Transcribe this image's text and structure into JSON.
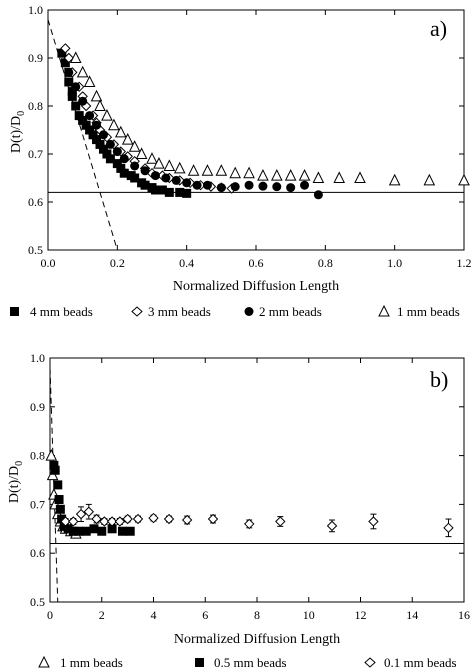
{
  "chart_data": [
    {
      "type": "scatter",
      "panel_label": "a)",
      "xlabel": "Normalized Diffusion Length",
      "ylabel": "D(t)/D",
      "ylabel_sub": "0",
      "xlim": [
        0,
        1.2
      ],
      "ylim": [
        0.5,
        1.0
      ],
      "xticks": [
        "0.0",
        "0.2",
        "0.4",
        "0.6",
        "0.8",
        "1.0",
        "1.2"
      ],
      "yticks": [
        "0.5",
        "0.6",
        "0.7",
        "0.8",
        "0.9",
        "1.0"
      ],
      "grid": false,
      "legend_position": "below",
      "reference_line": {
        "y": 0.62
      },
      "tangent_line": {
        "x1": 0.0,
        "y1": 0.98,
        "x2": 0.2,
        "y2": 0.5
      },
      "series": [
        {
          "name": "4 mm beads",
          "marker": "square-filled",
          "points": [
            [
              0.04,
              0.91
            ],
            [
              0.05,
              0.89
            ],
            [
              0.06,
              0.87
            ],
            [
              0.06,
              0.85
            ],
            [
              0.07,
              0.83
            ],
            [
              0.07,
              0.82
            ],
            [
              0.08,
              0.8
            ],
            [
              0.09,
              0.78
            ],
            [
              0.1,
              0.77
            ],
            [
              0.11,
              0.76
            ],
            [
              0.12,
              0.75
            ],
            [
              0.13,
              0.74
            ],
            [
              0.14,
              0.73
            ],
            [
              0.15,
              0.72
            ],
            [
              0.16,
              0.71
            ],
            [
              0.17,
              0.7
            ],
            [
              0.18,
              0.69
            ],
            [
              0.2,
              0.68
            ],
            [
              0.21,
              0.67
            ],
            [
              0.22,
              0.66
            ],
            [
              0.24,
              0.655
            ],
            [
              0.25,
              0.65
            ],
            [
              0.27,
              0.64
            ],
            [
              0.28,
              0.635
            ],
            [
              0.3,
              0.63
            ],
            [
              0.31,
              0.625
            ],
            [
              0.33,
              0.625
            ],
            [
              0.35,
              0.62
            ],
            [
              0.38,
              0.62
            ],
            [
              0.4,
              0.618
            ]
          ]
        },
        {
          "name": "3 mm beads",
          "marker": "diamond-open",
          "points": [
            [
              0.05,
              0.92
            ],
            [
              0.06,
              0.9
            ],
            [
              0.07,
              0.87
            ],
            [
              0.09,
              0.84
            ],
            [
              0.1,
              0.82
            ],
            [
              0.11,
              0.8
            ],
            [
              0.13,
              0.78
            ],
            [
              0.14,
              0.765
            ],
            [
              0.15,
              0.75
            ],
            [
              0.17,
              0.735
            ],
            [
              0.19,
              0.72
            ],
            [
              0.21,
              0.705
            ],
            [
              0.23,
              0.695
            ],
            [
              0.25,
              0.685
            ],
            [
              0.28,
              0.67
            ],
            [
              0.3,
              0.66
            ],
            [
              0.33,
              0.655
            ],
            [
              0.35,
              0.65
            ],
            [
              0.38,
              0.645
            ],
            [
              0.41,
              0.64
            ],
            [
              0.44,
              0.635
            ],
            [
              0.47,
              0.632
            ],
            [
              0.5,
              0.63
            ],
            [
              0.53,
              0.628
            ]
          ]
        },
        {
          "name": "2 mm beads",
          "marker": "circle-filled",
          "points": [
            [
              0.06,
              0.87
            ],
            [
              0.08,
              0.84
            ],
            [
              0.1,
              0.81
            ],
            [
              0.12,
              0.78
            ],
            [
              0.14,
              0.76
            ],
            [
              0.16,
              0.74
            ],
            [
              0.18,
              0.72
            ],
            [
              0.2,
              0.705
            ],
            [
              0.22,
              0.69
            ],
            [
              0.25,
              0.675
            ],
            [
              0.28,
              0.665
            ],
            [
              0.31,
              0.655
            ],
            [
              0.34,
              0.65
            ],
            [
              0.37,
              0.645
            ],
            [
              0.4,
              0.64
            ],
            [
              0.43,
              0.635
            ],
            [
              0.46,
              0.635
            ],
            [
              0.5,
              0.63
            ],
            [
              0.54,
              0.632
            ],
            [
              0.58,
              0.635
            ],
            [
              0.62,
              0.633
            ],
            [
              0.66,
              0.632
            ],
            [
              0.7,
              0.63
            ],
            [
              0.74,
              0.635
            ],
            [
              0.78,
              0.615
            ]
          ]
        },
        {
          "name": "1 mm beads",
          "marker": "triangle-open",
          "points": [
            [
              0.08,
              0.9
            ],
            [
              0.1,
              0.87
            ],
            [
              0.12,
              0.85
            ],
            [
              0.14,
              0.82
            ],
            [
              0.15,
              0.8
            ],
            [
              0.17,
              0.78
            ],
            [
              0.19,
              0.76
            ],
            [
              0.21,
              0.745
            ],
            [
              0.23,
              0.73
            ],
            [
              0.25,
              0.715
            ],
            [
              0.27,
              0.7
            ],
            [
              0.3,
              0.69
            ],
            [
              0.32,
              0.68
            ],
            [
              0.35,
              0.675
            ],
            [
              0.38,
              0.67
            ],
            [
              0.42,
              0.665
            ],
            [
              0.46,
              0.665
            ],
            [
              0.5,
              0.665
            ],
            [
              0.54,
              0.66
            ],
            [
              0.58,
              0.66
            ],
            [
              0.62,
              0.655
            ],
            [
              0.66,
              0.655
            ],
            [
              0.7,
              0.655
            ],
            [
              0.74,
              0.655
            ],
            [
              0.78,
              0.65
            ],
            [
              0.84,
              0.65
            ],
            [
              0.9,
              0.65
            ],
            [
              1.0,
              0.645
            ],
            [
              1.1,
              0.645
            ],
            [
              1.2,
              0.645
            ]
          ]
        }
      ]
    },
    {
      "type": "scatter",
      "panel_label": "b)",
      "xlabel": "Normalized Diffusion Length",
      "ylabel": "D(t)/D",
      "ylabel_sub": "0",
      "xlim": [
        0,
        16
      ],
      "ylim": [
        0.5,
        1.0
      ],
      "xticks": [
        "0",
        "2",
        "4",
        "6",
        "8",
        "10",
        "12",
        "14",
        "16"
      ],
      "yticks": [
        "0.5",
        "0.6",
        "0.7",
        "0.8",
        "0.9",
        "1.0"
      ],
      "grid": false,
      "legend_position": "below",
      "reference_line": {
        "y": 0.62
      },
      "tangent_line": {
        "x1": 0.0,
        "y1": 0.98,
        "x2": 0.3,
        "y2": 0.5
      },
      "series": [
        {
          "name": "1 mm beads",
          "marker": "triangle-open",
          "points": [
            [
              0.05,
              0.8
            ],
            [
              0.1,
              0.76
            ],
            [
              0.15,
              0.72
            ],
            [
              0.2,
              0.7
            ],
            [
              0.3,
              0.68
            ],
            [
              0.4,
              0.665
            ],
            [
              0.5,
              0.655
            ],
            [
              0.6,
              0.65
            ],
            [
              0.8,
              0.645
            ],
            [
              1.0,
              0.64
            ]
          ]
        },
        {
          "name": "0.5 mm beads",
          "marker": "square-filled",
          "points": [
            [
              0.15,
              0.78
            ],
            [
              0.2,
              0.77
            ],
            [
              0.3,
              0.74
            ],
            [
              0.35,
              0.71
            ],
            [
              0.4,
              0.69
            ],
            [
              0.45,
              0.67
            ],
            [
              0.55,
              0.655
            ],
            [
              0.7,
              0.65
            ],
            [
              0.9,
              0.645
            ],
            [
              1.1,
              0.645
            ],
            [
              1.4,
              0.645
            ],
            [
              1.7,
              0.65
            ],
            [
              2.0,
              0.645
            ],
            [
              2.4,
              0.65
            ],
            [
              2.8,
              0.645
            ],
            [
              3.1,
              0.645
            ]
          ]
        },
        {
          "name": "0.1 mm beads",
          "marker": "diamond-open",
          "points": [
            [
              0.6,
              0.665
            ],
            [
              0.9,
              0.665
            ],
            [
              1.2,
              0.68
            ],
            [
              1.5,
              0.685
            ],
            [
              1.8,
              0.67
            ],
            [
              2.1,
              0.665
            ],
            [
              2.4,
              0.665
            ],
            [
              2.7,
              0.665
            ],
            [
              3.0,
              0.67
            ],
            [
              3.4,
              0.67
            ],
            [
              4.0,
              0.672
            ],
            [
              4.6,
              0.67
            ],
            [
              5.3,
              0.668
            ],
            [
              6.3,
              0.67
            ],
            [
              7.7,
              0.66
            ],
            [
              8.9,
              0.665
            ],
            [
              10.9,
              0.656
            ],
            [
              12.5,
              0.665
            ],
            [
              15.4,
              0.652
            ]
          ],
          "error": [
            0.006,
            0.006,
            0.015,
            0.015,
            0.008,
            0.006,
            0.006,
            0.006,
            0.006,
            0.006,
            0.006,
            0.006,
            0.008,
            0.008,
            0.008,
            0.01,
            0.012,
            0.015,
            0.018
          ]
        }
      ]
    }
  ]
}
